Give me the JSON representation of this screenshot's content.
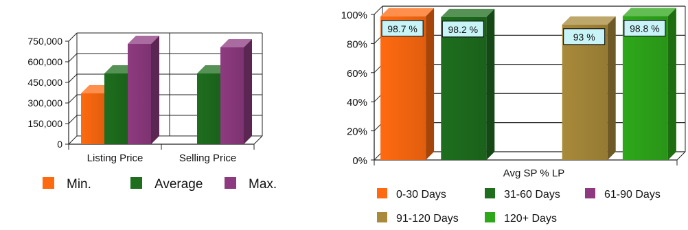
{
  "chart_data": [
    {
      "type": "bar",
      "title": "",
      "xlabel": "",
      "ylabel": "",
      "categories": [
        "Listing Price",
        "Selling Price"
      ],
      "series": [
        {
          "name": "Min.",
          "color": "#ff6a10",
          "values": [
            370000,
            null
          ]
        },
        {
          "name": "Average",
          "color": "#1e6e1e",
          "values": [
            515000,
            515000
          ]
        },
        {
          "name": "Max.",
          "color": "#8e3a80",
          "values": [
            730000,
            705000
          ]
        }
      ],
      "ylim": [
        0,
        750000
      ],
      "yticks": [
        "0",
        "150,000",
        "300,000",
        "450,000",
        "600,000",
        "750,000"
      ],
      "yticks_values": [
        0,
        150000,
        300000,
        450000,
        600000,
        750000
      ],
      "grid": "horizontal",
      "legend": "bottom"
    },
    {
      "type": "bar",
      "title": "",
      "xlabel": "Avg SP % LP",
      "ylabel": "",
      "categories": [
        "0-30 Days",
        "31-60 Days",
        "61-90 Days",
        "91-120 Days",
        "120+ Days"
      ],
      "values": [
        98.7,
        98.2,
        null,
        93,
        98.8
      ],
      "data_labels": [
        "98.7 %",
        "98.2 %",
        "",
        "93 %",
        "98.8 %"
      ],
      "colors": [
        "#ff6a10",
        "#1e6e1e",
        "#8e3a80",
        "#a88a3a",
        "#2ea81a"
      ],
      "ylim": [
        0,
        100
      ],
      "yticks": [
        "0%",
        "20%",
        "40%",
        "60%",
        "80%",
        "100%"
      ],
      "yticks_values": [
        0,
        20,
        40,
        60,
        80,
        100
      ],
      "grid": "horizontal",
      "legend": "bottom"
    }
  ]
}
